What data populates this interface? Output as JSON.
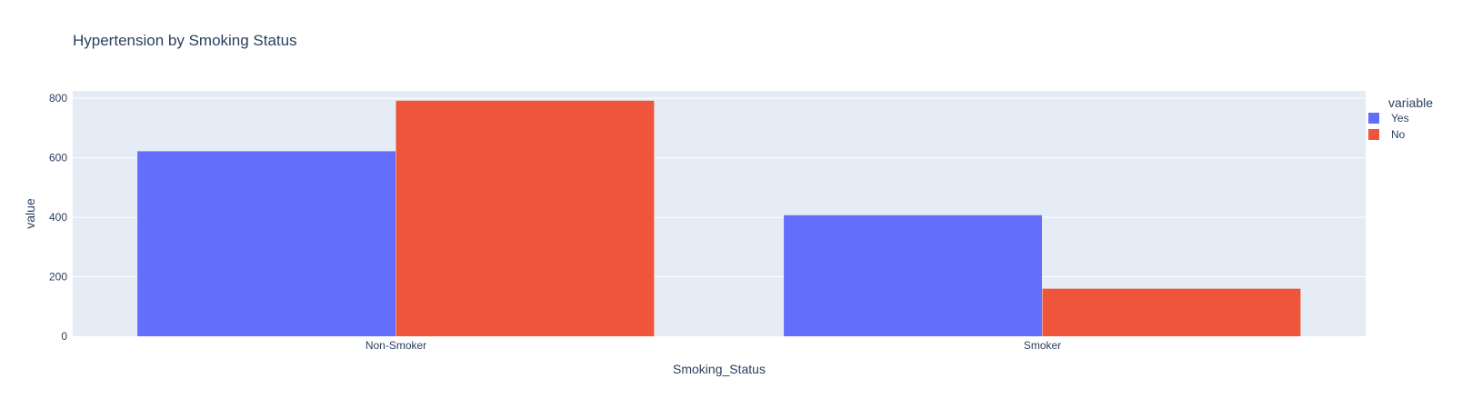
{
  "colors": {
    "plot_background": "#E5ECF6",
    "gridline": "#FFFFFF",
    "text": "#2a3f5f"
  },
  "chart_data": {
    "type": "bar",
    "barmode": "group",
    "title": "Hypertension by Smoking Status",
    "xlabel": "Smoking_Status",
    "ylabel": "value",
    "categories": [
      "Non-Smoker",
      "Smoker"
    ],
    "series": [
      {
        "name": "Yes",
        "color": "#636EFA",
        "values": [
          622,
          407
        ]
      },
      {
        "name": "No",
        "color": "#EF553B",
        "values": [
          792,
          160
        ]
      }
    ],
    "ylim": [
      0,
      825
    ],
    "yticks": [
      0,
      200,
      400,
      600,
      800
    ],
    "ytick_labels": [
      "0",
      "200",
      "400",
      "600",
      "800"
    ],
    "grid": true,
    "legend": {
      "title": "variable",
      "position": "top-right"
    }
  }
}
